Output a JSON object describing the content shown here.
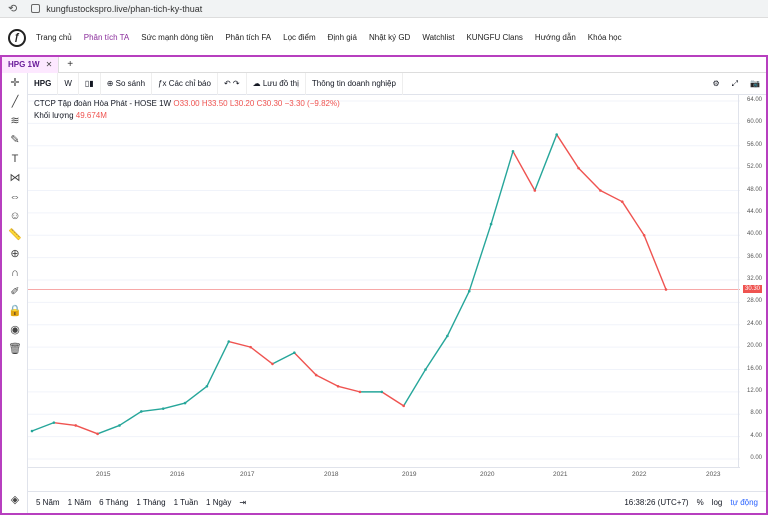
{
  "browser": {
    "url": "kungfustockspro.live/phan-tich-ky-thuat"
  },
  "nav": {
    "items": [
      "Trang chủ",
      "Phân tích TA",
      "Sức mạnh dòng tiền",
      "Phân tích FA",
      "Lọc điểm",
      "Định giá",
      "Nhật ký GD",
      "Watchlist",
      "KUNGFU Clans",
      "Hướng dẫn",
      "Khóa học"
    ],
    "active": "Phân tích TA"
  },
  "tabs": {
    "active_label": "HPG 1W",
    "add": "+"
  },
  "toolbar": {
    "symbol": "HPG",
    "interval": "W",
    "compare": "So sánh",
    "indicators": "Các chỉ báo",
    "save": "Lưu đồ thị",
    "info": "Thông tin doanh nghiệp"
  },
  "legend": {
    "title": "CTCP Tập đoàn Hòa Phát - HOSE",
    "interval": "1W",
    "o": "O33.00",
    "h": "H33.50",
    "l": "L30.20",
    "c": "C30.30",
    "chg": "−3.30 (−9.82%)",
    "volume_label": "Khối lượng",
    "volume_value": "49.674M"
  },
  "price_axis": [
    "64.00",
    "60.00",
    "56.00",
    "52.00",
    "48.00",
    "44.00",
    "40.00",
    "36.00",
    "32.00",
    "28.00",
    "24.00",
    "20.00",
    "16.00",
    "12.00",
    "8.00",
    "4.00",
    "0.00"
  ],
  "last_price": "30.30",
  "time_axis": [
    "2015",
    "2016",
    "2017",
    "2018",
    "2019",
    "2020",
    "2021",
    "2022",
    "2023"
  ],
  "bottom": {
    "ranges": [
      "5 Năm",
      "1 Năm",
      "6 Tháng",
      "1 Tháng",
      "1 Tuần",
      "1 Ngày"
    ],
    "time": "16:38:26 (UTC+7)",
    "pct": "%",
    "log": "log",
    "auto": "tự động"
  },
  "colors": {
    "accent": "#b73fbf",
    "up": "#26a69a",
    "down": "#ef5350"
  },
  "chart_data": {
    "type": "line",
    "title": "CTCP Tập đoàn Hòa Phát - HOSE",
    "x": [
      "2014-08",
      "2015-01",
      "2015-06",
      "2016-01",
      "2016-06",
      "2016-10",
      "2017-01",
      "2017-06",
      "2017-10",
      "2018-01",
      "2018-03",
      "2018-06",
      "2018-10",
      "2019-01",
      "2019-06",
      "2019-10",
      "2020-01",
      "2020-03",
      "2020-06",
      "2020-10",
      "2021-01",
      "2021-03",
      "2021-05",
      "2021-07",
      "2021-09",
      "2021-11",
      "2022-01",
      "2022-03",
      "2022-05",
      "2022-06"
    ],
    "series": [
      {
        "values": [
          5,
          6.5,
          6,
          4.5,
          6,
          8.5,
          9,
          10,
          13,
          21,
          20,
          17,
          19,
          15,
          13,
          12,
          12,
          9.5,
          16,
          22,
          30,
          42,
          55,
          48,
          58,
          52,
          48,
          46,
          40,
          30.3
        ]
      }
    ],
    "ylim": [
      0,
      64
    ],
    "ylabel": "",
    "xlabel": ""
  }
}
